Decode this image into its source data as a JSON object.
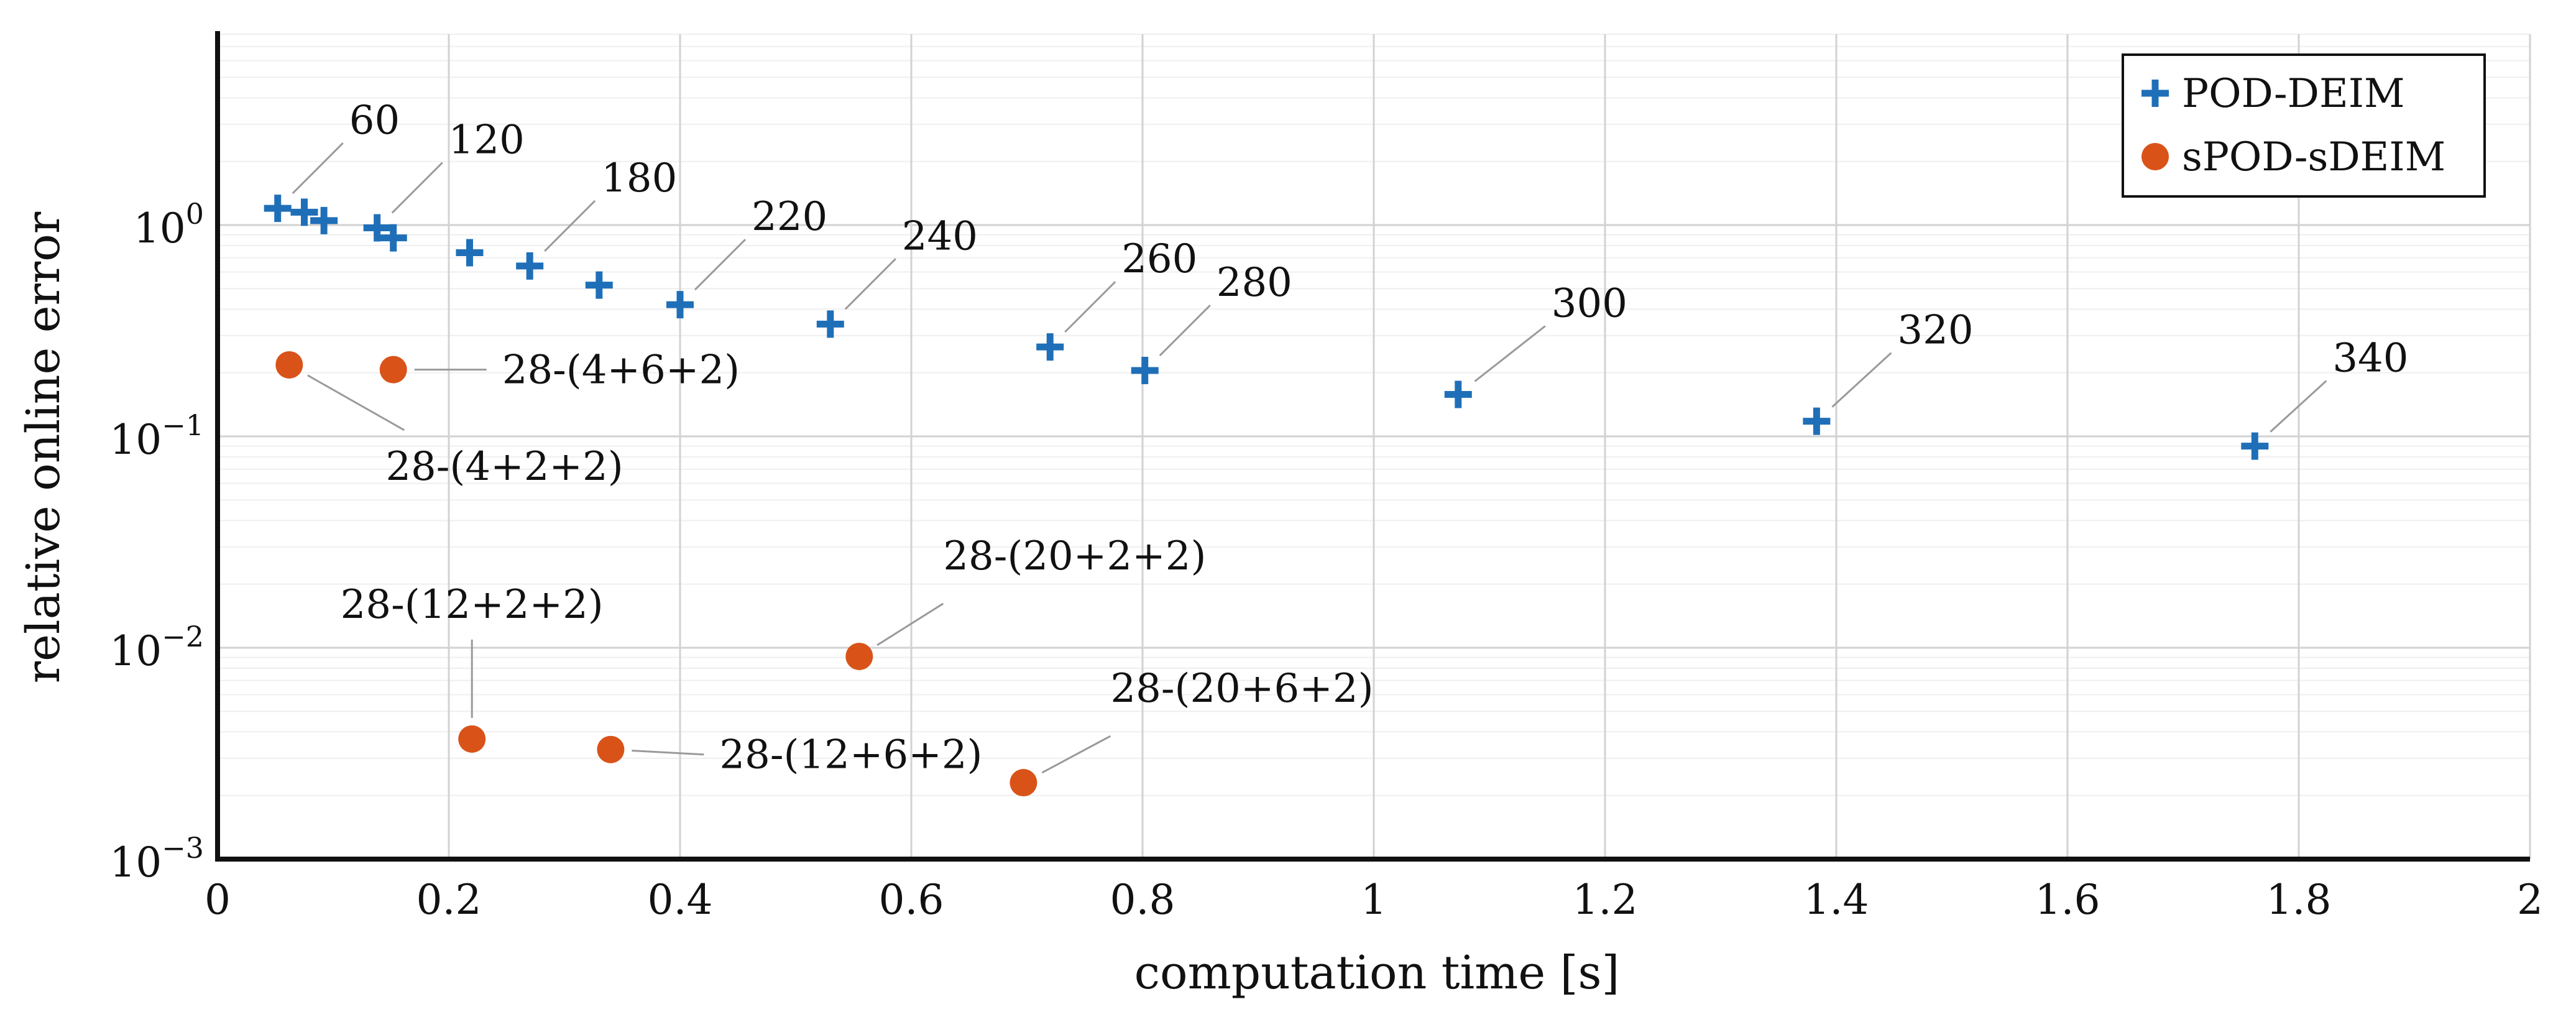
{
  "chart_data": {
    "type": "scatter",
    "xlabel": "computation time [s]",
    "ylabel": "relative online error",
    "xlim": [
      0,
      2
    ],
    "ylim": [
      0.001,
      8
    ],
    "yscale": "log",
    "x_ticks": [
      {
        "value": 0,
        "label": "0"
      },
      {
        "value": 0.2,
        "label": "0.2"
      },
      {
        "value": 0.4,
        "label": "0.4"
      },
      {
        "value": 0.6,
        "label": "0.6"
      },
      {
        "value": 0.8,
        "label": "0.8"
      },
      {
        "value": 1,
        "label": "1"
      },
      {
        "value": 1.2,
        "label": "1.2"
      },
      {
        "value": 1.4,
        "label": "1.4"
      },
      {
        "value": 1.6,
        "label": "1.6"
      },
      {
        "value": 1.8,
        "label": "1.8"
      },
      {
        "value": 2,
        "label": "2"
      }
    ],
    "y_ticks": [
      {
        "value": 0.001,
        "base": "10",
        "exp": "−3"
      },
      {
        "value": 0.01,
        "base": "10",
        "exp": "−2"
      },
      {
        "value": 0.1,
        "base": "10",
        "exp": "−1"
      },
      {
        "value": 1,
        "base": "10",
        "exp": "0"
      }
    ],
    "grid": true,
    "legend": {
      "position": "top-right"
    },
    "series": [
      {
        "name": "POD-DEIM",
        "marker": "plus",
        "color": "#1f6fb8",
        "points": [
          {
            "x": 0.052,
            "y": 1.2,
            "label": "60"
          },
          {
            "x": 0.075,
            "y": 1.15,
            "label": ""
          },
          {
            "x": 0.092,
            "y": 1.05,
            "label": ""
          },
          {
            "x": 0.138,
            "y": 0.97,
            "label": "120"
          },
          {
            "x": 0.152,
            "y": 0.87,
            "label": ""
          },
          {
            "x": 0.218,
            "y": 0.74,
            "label": ""
          },
          {
            "x": 0.27,
            "y": 0.64,
            "label": "180"
          },
          {
            "x": 0.33,
            "y": 0.52,
            "label": ""
          },
          {
            "x": 0.4,
            "y": 0.42,
            "label": "220"
          },
          {
            "x": 0.53,
            "y": 0.34,
            "label": "240"
          },
          {
            "x": 0.72,
            "y": 0.265,
            "label": "260"
          },
          {
            "x": 0.802,
            "y": 0.205,
            "label": "280"
          },
          {
            "x": 1.073,
            "y": 0.158,
            "label": "300"
          },
          {
            "x": 1.383,
            "y": 0.118,
            "label": "320"
          },
          {
            "x": 1.762,
            "y": 0.09,
            "label": "340"
          }
        ]
      },
      {
        "name": "sPOD-sDEIM",
        "marker": "circle",
        "color": "#d95319",
        "points": [
          {
            "x": 0.062,
            "y": 0.218,
            "label": "28-(4+2+2)"
          },
          {
            "x": 0.152,
            "y": 0.207,
            "label": "28-(4+6+2)"
          },
          {
            "x": 0.22,
            "y": 0.0037,
            "label": "28-(12+2+2)"
          },
          {
            "x": 0.34,
            "y": 0.0033,
            "label": "28-(12+6+2)"
          },
          {
            "x": 0.555,
            "y": 0.0091,
            "label": "28-(20+2+2)"
          },
          {
            "x": 0.697,
            "y": 0.0023,
            "label": "28-(20+6+2)"
          }
        ]
      }
    ]
  }
}
